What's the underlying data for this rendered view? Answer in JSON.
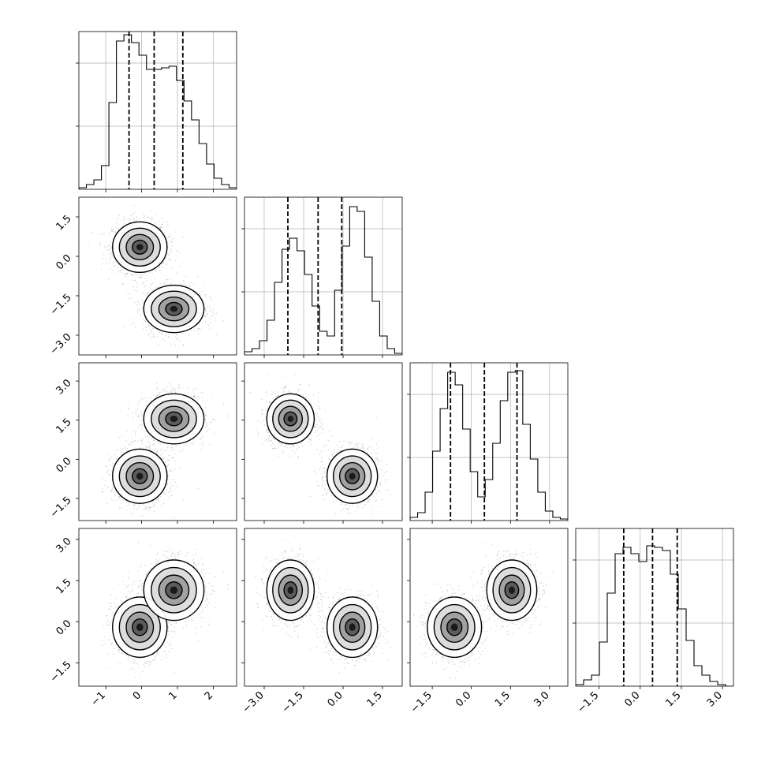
{
  "chart_data": {
    "type": "corner",
    "n_params": 4,
    "quantile_lines_style": "dashed",
    "grid": true,
    "colors": {
      "hist": "#000000",
      "grid": "#b0b0b0",
      "points": "#7f7f7f",
      "contour": "#000000"
    },
    "axes": [
      {
        "range": [
          -1.75,
          2.65
        ],
        "ticks": [
          -1,
          0,
          1,
          2
        ],
        "tick_labels": [
          "−1",
          "0",
          "1",
          "2"
        ],
        "quantiles": [
          -0.35,
          0.35,
          1.15
        ],
        "hist_counts": [
          0.01,
          0.03,
          0.06,
          0.15,
          0.55,
          0.94,
          0.98,
          0.93,
          0.85,
          0.76,
          0.76,
          0.77,
          0.78,
          0.69,
          0.56,
          0.44,
          0.29,
          0.16,
          0.07,
          0.03,
          0.01
        ]
      },
      {
        "range": [
          -3.75,
          2.25
        ],
        "ticks": [
          -3.0,
          -1.5,
          0.0,
          1.5
        ],
        "tick_labels": [
          "−3.0",
          "−1.5",
          "0.0",
          "1.5"
        ],
        "quantiles": [
          -2.1,
          -0.95,
          -0.05
        ],
        "hist_counts": [
          0.02,
          0.04,
          0.09,
          0.22,
          0.46,
          0.67,
          0.74,
          0.66,
          0.51,
          0.31,
          0.15,
          0.12,
          0.41,
          0.69,
          0.94,
          0.91,
          0.62,
          0.34,
          0.12,
          0.04,
          0.01
        ]
      },
      {
        "range": [
          -2.35,
          3.7
        ],
        "ticks": [
          -1.5,
          0.0,
          1.5,
          3.0
        ],
        "tick_labels": [
          "−1.5",
          "0.0",
          "1.5",
          "3.0"
        ],
        "quantiles": [
          -0.8,
          0.5,
          1.75
        ],
        "hist_counts": [
          0.02,
          0.05,
          0.18,
          0.44,
          0.71,
          0.94,
          0.86,
          0.58,
          0.31,
          0.15,
          0.26,
          0.49,
          0.76,
          0.94,
          0.95,
          0.61,
          0.39,
          0.18,
          0.06,
          0.02,
          0.01
        ]
      },
      {
        "range": [
          -2.35,
          3.4
        ],
        "ticks": [
          -1.5,
          0.0,
          1.5,
          3.0
        ],
        "tick_labels": [
          "−1.5",
          "0.0",
          "1.5",
          "3.0"
        ],
        "quantiles": [
          -0.6,
          0.45,
          1.35
        ],
        "hist_counts": [
          0.01,
          0.04,
          0.07,
          0.28,
          0.59,
          0.84,
          0.88,
          0.84,
          0.79,
          0.89,
          0.88,
          0.86,
          0.71,
          0.49,
          0.29,
          0.13,
          0.07,
          0.03,
          0.01,
          0.0
        ]
      }
    ],
    "modes": [
      {
        "center": [
          -0.05,
          0.35,
          -0.65,
          -0.2
        ],
        "scale": [
          0.38,
          0.48,
          0.52,
          0.55
        ]
      },
      {
        "center": [
          0.9,
          -2.0,
          1.55,
          1.15
        ],
        "scale": [
          0.42,
          0.45,
          0.48,
          0.55
        ]
      }
    ]
  }
}
